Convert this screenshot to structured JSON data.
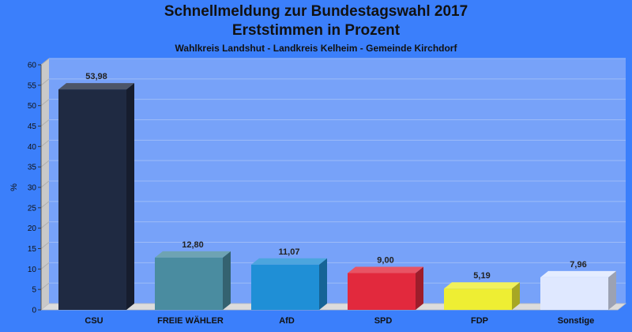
{
  "chart_data": {
    "type": "bar",
    "title": "Schnellmeldung zur Bundestagswahl 2017",
    "subtitle": "Erststimmen in Prozent",
    "subtitle2": "Wahlkreis Landshut - Landkreis Kelheim - Gemeinde Kirchdorf",
    "xlabel": "",
    "ylabel": "%",
    "ylim": [
      0,
      60
    ],
    "yticks": [
      0,
      5,
      10,
      15,
      20,
      25,
      30,
      35,
      40,
      45,
      50,
      55,
      60
    ],
    "grid": true,
    "categories": [
      "CSU",
      "FREIE WÄHLER",
      "AfD",
      "SPD",
      "FDP",
      "Sonstige"
    ],
    "values": [
      53.98,
      12.8,
      11.07,
      9.0,
      5.19,
      7.96
    ],
    "value_labels": [
      "53,98",
      "12,80",
      "11,07",
      "9,00",
      "5,19",
      "7,96"
    ],
    "colors": [
      "#1f2a42",
      "#4a8ca0",
      "#1f8fd6",
      "#e2293d",
      "#eeee33",
      "#dfe8ff"
    ]
  }
}
